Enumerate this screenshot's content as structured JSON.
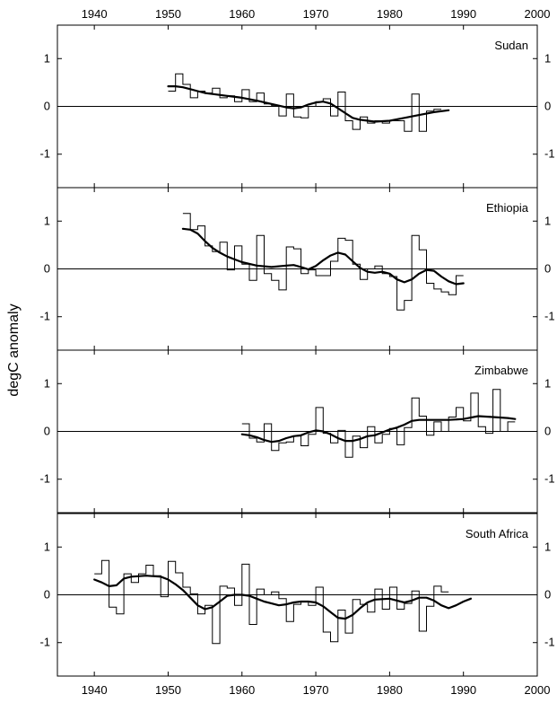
{
  "chart_data": {
    "type": "line",
    "ylabel": "degC anomaly",
    "x_ticks": [
      1940,
      1950,
      1960,
      1970,
      1980,
      1990,
      2000
    ],
    "x_range": [
      1935,
      2000
    ],
    "y_ticks": [
      1,
      0,
      -1
    ],
    "y_range": [
      -1.7,
      1.7
    ],
    "panels": [
      {
        "title": "Sudan",
        "start": 1950,
        "annual": [
          0.32,
          0.68,
          0.46,
          0.18,
          0.32,
          0.28,
          0.38,
          0.18,
          0.22,
          0.1,
          0.35,
          0.1,
          0.28,
          0.05,
          0.02,
          -0.2,
          0.26,
          -0.22,
          -0.24,
          0.0,
          0.1,
          0.16,
          -0.2,
          0.3,
          -0.3,
          -0.48,
          -0.22,
          -0.35,
          -0.3,
          -0.35,
          -0.3,
          -0.3,
          -0.52,
          0.26,
          -0.52,
          -0.1,
          -0.06
        ],
        "smooth": [
          [
            1950,
            0.42
          ],
          [
            1951,
            0.42
          ],
          [
            1952,
            0.4
          ],
          [
            1953,
            0.36
          ],
          [
            1954,
            0.32
          ],
          [
            1955,
            0.28
          ],
          [
            1956,
            0.26
          ],
          [
            1958,
            0.22
          ],
          [
            1960,
            0.18
          ],
          [
            1962,
            0.12
          ],
          [
            1964,
            0.05
          ],
          [
            1966,
            -0.02
          ],
          [
            1967,
            -0.04
          ],
          [
            1968,
            -0.02
          ],
          [
            1969,
            0.04
          ],
          [
            1970,
            0.08
          ],
          [
            1971,
            0.1
          ],
          [
            1972,
            0.06
          ],
          [
            1973,
            -0.04
          ],
          [
            1974,
            -0.14
          ],
          [
            1975,
            -0.24
          ],
          [
            1976,
            -0.28
          ],
          [
            1978,
            -0.32
          ],
          [
            1980,
            -0.3
          ],
          [
            1982,
            -0.24
          ],
          [
            1984,
            -0.18
          ],
          [
            1986,
            -0.12
          ],
          [
            1988,
            -0.08
          ]
        ]
      },
      {
        "title": "Ethiopia",
        "start": 1952,
        "annual": [
          1.16,
          0.82,
          0.9,
          0.48,
          0.36,
          0.56,
          -0.02,
          0.48,
          0.1,
          -0.24,
          0.7,
          -0.1,
          -0.24,
          -0.44,
          0.46,
          0.42,
          -0.1,
          -0.02,
          -0.14,
          -0.14,
          0.16,
          0.64,
          0.6,
          0.1,
          -0.22,
          0.0,
          0.06,
          -0.1,
          -0.16,
          -0.86,
          -0.66,
          0.7,
          0.4,
          -0.3,
          -0.42,
          -0.48,
          -0.54,
          -0.14
        ],
        "smooth": [
          [
            1952,
            0.84
          ],
          [
            1953,
            0.82
          ],
          [
            1954,
            0.74
          ],
          [
            1955,
            0.58
          ],
          [
            1956,
            0.44
          ],
          [
            1957,
            0.34
          ],
          [
            1958,
            0.26
          ],
          [
            1959,
            0.2
          ],
          [
            1960,
            0.14
          ],
          [
            1962,
            0.07
          ],
          [
            1964,
            0.04
          ],
          [
            1966,
            0.07
          ],
          [
            1967,
            0.08
          ],
          [
            1968,
            0.04
          ],
          [
            1969,
            -0.01
          ],
          [
            1970,
            0.06
          ],
          [
            1971,
            0.18
          ],
          [
            1972,
            0.28
          ],
          [
            1973,
            0.34
          ],
          [
            1974,
            0.3
          ],
          [
            1975,
            0.16
          ],
          [
            1976,
            0.02
          ],
          [
            1977,
            -0.06
          ],
          [
            1978,
            -0.08
          ],
          [
            1979,
            -0.06
          ],
          [
            1980,
            -0.1
          ],
          [
            1981,
            -0.22
          ],
          [
            1982,
            -0.28
          ],
          [
            1983,
            -0.22
          ],
          [
            1984,
            -0.1
          ],
          [
            1985,
            -0.02
          ],
          [
            1986,
            -0.04
          ],
          [
            1987,
            -0.16
          ],
          [
            1988,
            -0.26
          ],
          [
            1989,
            -0.32
          ],
          [
            1990,
            -0.3
          ]
        ],
        "annual_end": 1991
      },
      {
        "title": "Zimbabwe",
        "start": 1960,
        "annual": [
          0.16,
          -0.14,
          -0.22,
          0.16,
          -0.4,
          -0.24,
          -0.22,
          -0.1,
          -0.3,
          -0.06,
          0.5,
          -0.04,
          -0.24,
          0.02,
          -0.54,
          -0.1,
          -0.34,
          0.1,
          -0.24,
          -0.06,
          0.06,
          -0.28,
          0.08,
          0.7,
          0.32,
          -0.08,
          0.2,
          0.0,
          0.3,
          0.5,
          0.22,
          0.8,
          0.1,
          -0.04,
          0.88,
          0.0,
          0.2
        ],
        "smooth": [
          [
            1960,
            -0.06
          ],
          [
            1961,
            -0.08
          ],
          [
            1962,
            -0.12
          ],
          [
            1963,
            -0.18
          ],
          [
            1964,
            -0.22
          ],
          [
            1965,
            -0.2
          ],
          [
            1966,
            -0.14
          ],
          [
            1967,
            -0.1
          ],
          [
            1968,
            -0.08
          ],
          [
            1969,
            -0.02
          ],
          [
            1970,
            0.02
          ],
          [
            1971,
            0.0
          ],
          [
            1972,
            -0.06
          ],
          [
            1973,
            -0.14
          ],
          [
            1974,
            -0.2
          ],
          [
            1975,
            -0.2
          ],
          [
            1976,
            -0.16
          ],
          [
            1977,
            -0.1
          ],
          [
            1978,
            -0.08
          ],
          [
            1979,
            -0.02
          ],
          [
            1980,
            0.04
          ],
          [
            1981,
            0.08
          ],
          [
            1982,
            0.14
          ],
          [
            1983,
            0.22
          ],
          [
            1984,
            0.24
          ],
          [
            1986,
            0.24
          ],
          [
            1988,
            0.24
          ],
          [
            1990,
            0.26
          ],
          [
            1992,
            0.32
          ],
          [
            1994,
            0.3
          ],
          [
            1996,
            0.28
          ],
          [
            1997,
            0.26
          ]
        ],
        "annual_end": 1998
      },
      {
        "title": "South Africa",
        "start": 1940,
        "annual": [
          0.44,
          0.72,
          -0.26,
          -0.4,
          0.44,
          0.26,
          0.44,
          0.62,
          0.4,
          -0.04,
          0.7,
          0.46,
          0.16,
          0.02,
          -0.4,
          -0.22,
          -1.02,
          0.18,
          0.14,
          -0.22,
          0.64,
          -0.62,
          0.12,
          0.0,
          0.06,
          -0.08,
          -0.56,
          -0.2,
          -0.14,
          -0.22,
          0.16,
          -0.78,
          -0.98,
          -0.32,
          -0.8,
          -0.1,
          -0.2,
          -0.36,
          0.12,
          -0.3,
          0.16,
          -0.3,
          -0.18,
          0.08,
          -0.76,
          -0.24,
          0.18,
          0.06
        ],
        "smooth": [
          [
            1940,
            0.32
          ],
          [
            1941,
            0.26
          ],
          [
            1942,
            0.18
          ],
          [
            1943,
            0.2
          ],
          [
            1944,
            0.34
          ],
          [
            1945,
            0.38
          ],
          [
            1947,
            0.4
          ],
          [
            1949,
            0.38
          ],
          [
            1950,
            0.32
          ],
          [
            1951,
            0.22
          ],
          [
            1952,
            0.1
          ],
          [
            1953,
            -0.06
          ],
          [
            1954,
            -0.22
          ],
          [
            1955,
            -0.3
          ],
          [
            1956,
            -0.26
          ],
          [
            1957,
            -0.14
          ],
          [
            1958,
            -0.02
          ],
          [
            1959,
            0.0
          ],
          [
            1960,
            0.0
          ],
          [
            1961,
            -0.02
          ],
          [
            1962,
            -0.08
          ],
          [
            1963,
            -0.14
          ],
          [
            1964,
            -0.18
          ],
          [
            1965,
            -0.22
          ],
          [
            1966,
            -0.2
          ],
          [
            1967,
            -0.16
          ],
          [
            1968,
            -0.14
          ],
          [
            1969,
            -0.14
          ],
          [
            1970,
            -0.16
          ],
          [
            1971,
            -0.24
          ],
          [
            1972,
            -0.36
          ],
          [
            1973,
            -0.48
          ],
          [
            1974,
            -0.5
          ],
          [
            1975,
            -0.42
          ],
          [
            1976,
            -0.28
          ],
          [
            1977,
            -0.16
          ],
          [
            1978,
            -0.1
          ],
          [
            1980,
            -0.08
          ],
          [
            1981,
            -0.12
          ],
          [
            1982,
            -0.16
          ],
          [
            1983,
            -0.12
          ],
          [
            1984,
            -0.06
          ],
          [
            1985,
            -0.06
          ],
          [
            1986,
            -0.12
          ],
          [
            1987,
            -0.22
          ],
          [
            1988,
            -0.28
          ],
          [
            1989,
            -0.22
          ],
          [
            1990,
            -0.14
          ],
          [
            1991,
            -0.08
          ]
        ],
        "annual_end": 1988
      }
    ]
  }
}
